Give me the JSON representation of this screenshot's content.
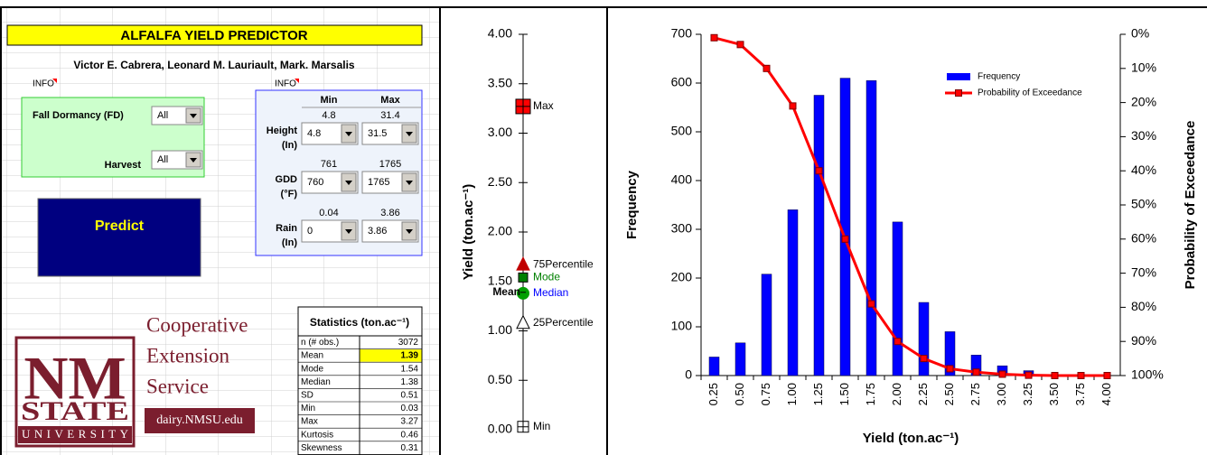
{
  "sheet": {
    "title": "ALFALFA YIELD PREDICTOR",
    "authors": "Victor E. Cabrera, Leonard M. Lauriault, Mark. Marsalis",
    "info": [
      "INFO",
      "INFO"
    ],
    "selectors": [
      {
        "label": "Fall Dormancy (FD)",
        "value": "All"
      },
      {
        "label": "Harvest",
        "value": "All"
      }
    ],
    "predict": "Predict",
    "ranges": {
      "headers": [
        "Min",
        "Max"
      ],
      "rows": [
        {
          "label": "Height",
          "unit": "(In)",
          "limits": [
            "4.8",
            "31.4"
          ],
          "selected": [
            "4.8",
            "31.5"
          ]
        },
        {
          "label": "GDD",
          "unit": "(°F)",
          "limits": [
            "761",
            "1765"
          ],
          "selected": [
            "760",
            "1765"
          ]
        },
        {
          "label": "Rain",
          "unit": "(In)",
          "limits": [
            "0.04",
            "3.86"
          ],
          "selected": [
            "0",
            "3.86"
          ]
        }
      ]
    },
    "statistics": {
      "title": "Statistics (ton.ac⁻¹)",
      "rows": [
        [
          "n (# obs.)",
          "3072"
        ],
        [
          "Mean",
          "1.39"
        ],
        [
          "Mode",
          "1.54"
        ],
        [
          "Median",
          "1.38"
        ],
        [
          "SD",
          "0.51"
        ],
        [
          "Min",
          "0.03"
        ],
        [
          "Max",
          "3.27"
        ],
        [
          "Kurtosis",
          "0.46"
        ],
        [
          "Skewness",
          "0.31"
        ]
      ]
    },
    "logo": {
      "letters": "NM",
      "state": "STATE",
      "university": "UNIVERSITY",
      "unit": [
        "Cooperative",
        "Extension",
        "Service"
      ],
      "url": "dairy.NMSU.edu"
    }
  },
  "chart_data": [
    {
      "type": "markers",
      "ylabel": "Yield (ton.ac⁻¹)",
      "labels": [
        "Max",
        "75Percentile",
        "Mode",
        "Median",
        "Mean",
        "25Percentile",
        "Min"
      ],
      "values": [
        3.27,
        1.67,
        1.54,
        1.38,
        1.39,
        1.08,
        0.03
      ],
      "shapes": [
        "square-cross",
        "triangle",
        "square",
        "circle",
        "none",
        "triangle",
        "square-cross"
      ],
      "colors": [
        "#ff0000",
        "#c00000",
        "#008000",
        "#00a000",
        "#000000",
        "#ffffff",
        "#ffffff"
      ],
      "label_colors": [
        "#000000",
        "#000000",
        "#008000",
        "#0000ff",
        "#000000",
        "#000000",
        "#000000"
      ],
      "ylim": [
        0,
        4
      ],
      "yticks": [
        {
          "value": 0,
          "label": "0.00"
        },
        {
          "value": 0.5,
          "label": "0.50"
        },
        {
          "value": 1,
          "label": "1.00"
        },
        {
          "value": 1.5,
          "label": "1.50"
        },
        {
          "value": 2,
          "label": "2.00"
        },
        {
          "value": 2.5,
          "label": "2.50"
        },
        {
          "value": 3,
          "label": "3.00"
        },
        {
          "value": 3.5,
          "label": "3.50"
        },
        {
          "value": 4,
          "label": "4.00"
        }
      ]
    },
    {
      "type": "bar",
      "xlabel": "Yield (ton.ac⁻¹)",
      "ylabel": "Frequency",
      "y2label": "Probability of Exceedance",
      "categories": [
        "0.25",
        "0.50",
        "0.75",
        "1.00",
        "1.25",
        "1.50",
        "1.75",
        "2.00",
        "2.25",
        "2.50",
        "2.75",
        "3.00",
        "3.25",
        "3.50",
        "3.75",
        "4.00"
      ],
      "series": [
        {
          "name": "Frequency",
          "color": "#0000ff",
          "values": [
            38,
            67,
            208,
            340,
            575,
            610,
            605,
            315,
            150,
            90,
            42,
            20,
            10,
            2,
            1,
            0
          ]
        },
        {
          "name": "Probability of Exceedance",
          "type": "line",
          "axis": "y2",
          "color": "#ff0000",
          "values": [
            1,
            3,
            10,
            21,
            40,
            60,
            79,
            90,
            95,
            98,
            99,
            99.6,
            99.9,
            100,
            100,
            100
          ]
        }
      ],
      "ylim": [
        0,
        700
      ],
      "yticks": [
        0,
        100,
        200,
        300,
        400,
        500,
        600,
        700
      ],
      "y2lim": [
        100,
        0
      ],
      "y2ticks": [
        {
          "value": 0,
          "label": "0%"
        },
        {
          "value": 10,
          "label": "10%"
        },
        {
          "value": 20,
          "label": "20%"
        },
        {
          "value": 30,
          "label": "30%"
        },
        {
          "value": 40,
          "label": "40%"
        },
        {
          "value": 50,
          "label": "50%"
        },
        {
          "value": 60,
          "label": "60%"
        },
        {
          "value": 70,
          "label": "70%"
        },
        {
          "value": 80,
          "label": "80%"
        },
        {
          "value": 90,
          "label": "90%"
        },
        {
          "value": 100,
          "label": "100%"
        }
      ],
      "legend": "top-right"
    }
  ]
}
